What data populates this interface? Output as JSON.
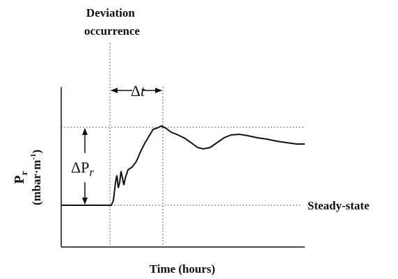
{
  "deviation_label": [
    "Deviation",
    "occurrence"
  ],
  "delta_t": {
    "symbol": "Δ",
    "variable": "t"
  },
  "y_axis_title": {
    "symbol": "P",
    "subscript": "r",
    "unit": "(mbar·m",
    "unit_superscript": "-1",
    "unit_close": ")"
  },
  "delta_p": {
    "symbol": "ΔP",
    "subscript": "r"
  },
  "steady_state_label": "Steady-state",
  "x_axis_title": "Time (hours)"
}
